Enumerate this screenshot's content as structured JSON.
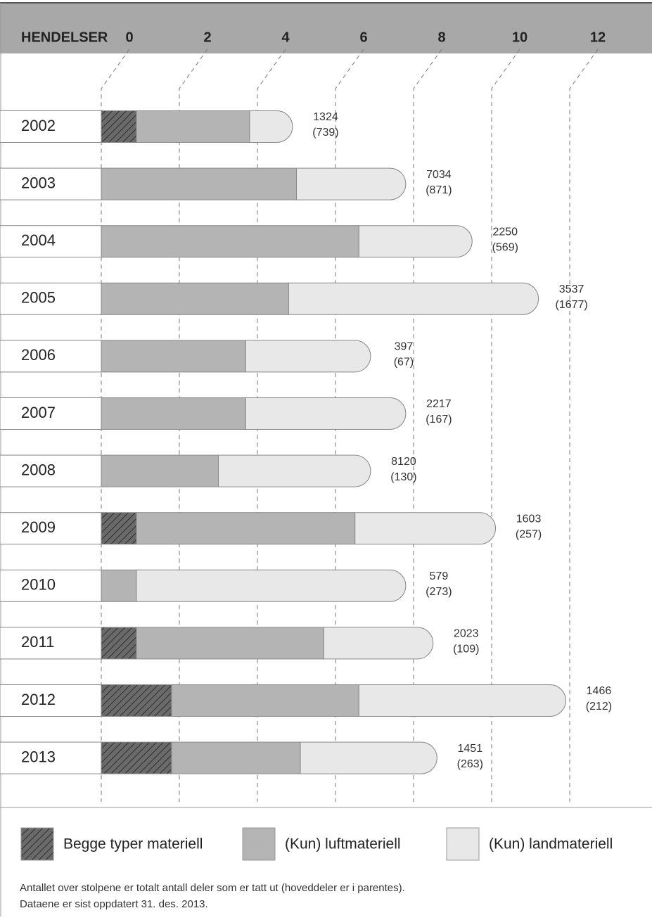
{
  "chart_data": {
    "type": "bar",
    "orientation": "horizontal",
    "stacked": true,
    "x_axis_label": "HENDELSER",
    "categories": [
      "2002",
      "2003",
      "2004",
      "2005",
      "2006",
      "2007",
      "2008",
      "2009",
      "2010",
      "2011",
      "2012",
      "2013"
    ],
    "series": [
      {
        "name": "Begge typer materiell",
        "color": "#5a5a5a",
        "pattern": "hatch",
        "values": [
          0.9,
          0,
          0,
          0,
          0,
          0,
          0,
          0.9,
          0,
          0.9,
          1.8,
          1.8
        ]
      },
      {
        "name": "(Kun) luftmateriell",
        "color": "#b4b4b4",
        "values": [
          2.9,
          5.0,
          6.6,
          4.8,
          3.7,
          3.7,
          3.0,
          5.6,
          0.9,
          4.8,
          4.8,
          3.3
        ]
      },
      {
        "name": "(Kun) landmateriell",
        "color": "#e8e8e8",
        "values": [
          1.1,
          2.8,
          2.9,
          6.4,
          3.2,
          4.1,
          3.9,
          3.6,
          6.9,
          2.8,
          5.3,
          3.5
        ]
      }
    ],
    "total_parts": [
      1324,
      7034,
      2250,
      3537,
      397,
      2217,
      8120,
      1603,
      579,
      2023,
      1466,
      1451
    ],
    "main_parts": [
      {
        "value": 739,
        "label": "(739)"
      },
      {
        "value": 871,
        "label": "(871)"
      },
      {
        "value": 569,
        "label": "(569)"
      },
      {
        "value": 1677,
        "label": "(1677)"
      },
      {
        "value": 67,
        "label": "(67)"
      },
      {
        "value": 167,
        "label": "(167)"
      },
      {
        "value": 130,
        "label": "(130)"
      },
      {
        "value": 257,
        "label": "(257)"
      },
      {
        "value": 273,
        "label": "(273)"
      },
      {
        "value": 109,
        "label": "(109)"
      },
      {
        "value": 212,
        "label": "(212)"
      },
      {
        "value": 263,
        "label": "(263)"
      }
    ],
    "xlim": [
      0,
      12
    ],
    "xticks": [
      0,
      2,
      4,
      6,
      8,
      10,
      12
    ],
    "grid": true,
    "legend": "bottom",
    "notes": [
      "Antallet over stolpene er totalt antall deler som er tatt ut (hoveddeler er i parentes).",
      "Dataene er sist oppdatert 31. des. 2013."
    ]
  }
}
